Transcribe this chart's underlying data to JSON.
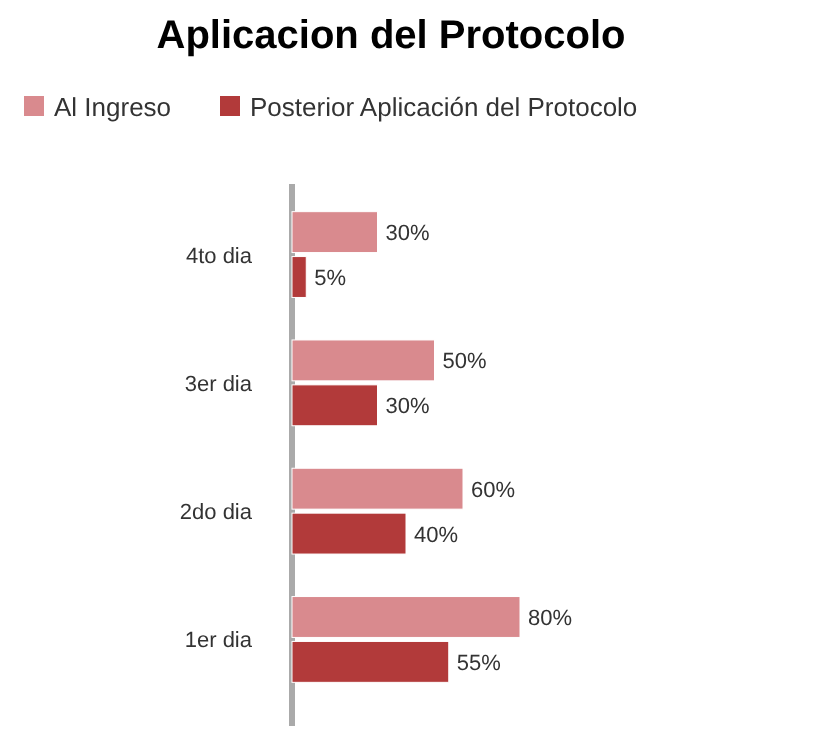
{
  "chart_data": {
    "type": "bar",
    "orientation": "horizontal",
    "title": "Aplicacion del Protocolo",
    "categories": [
      "4to dia",
      "3er dia",
      "2do dia",
      "1er dia"
    ],
    "legend": "top",
    "series": [
      {
        "name": "Al Ingreso",
        "color": "#d98a8e",
        "values": [
          30,
          50,
          60,
          80
        ],
        "value_labels": [
          "30%",
          "50%",
          "60%",
          "80%"
        ]
      },
      {
        "name": "Posterior Aplicación del Protocolo",
        "color": "#b23a3a",
        "values": [
          5,
          30,
          40,
          55
        ],
        "value_labels": [
          "5%",
          "30%",
          "40%",
          "55%"
        ]
      }
    ]
  }
}
